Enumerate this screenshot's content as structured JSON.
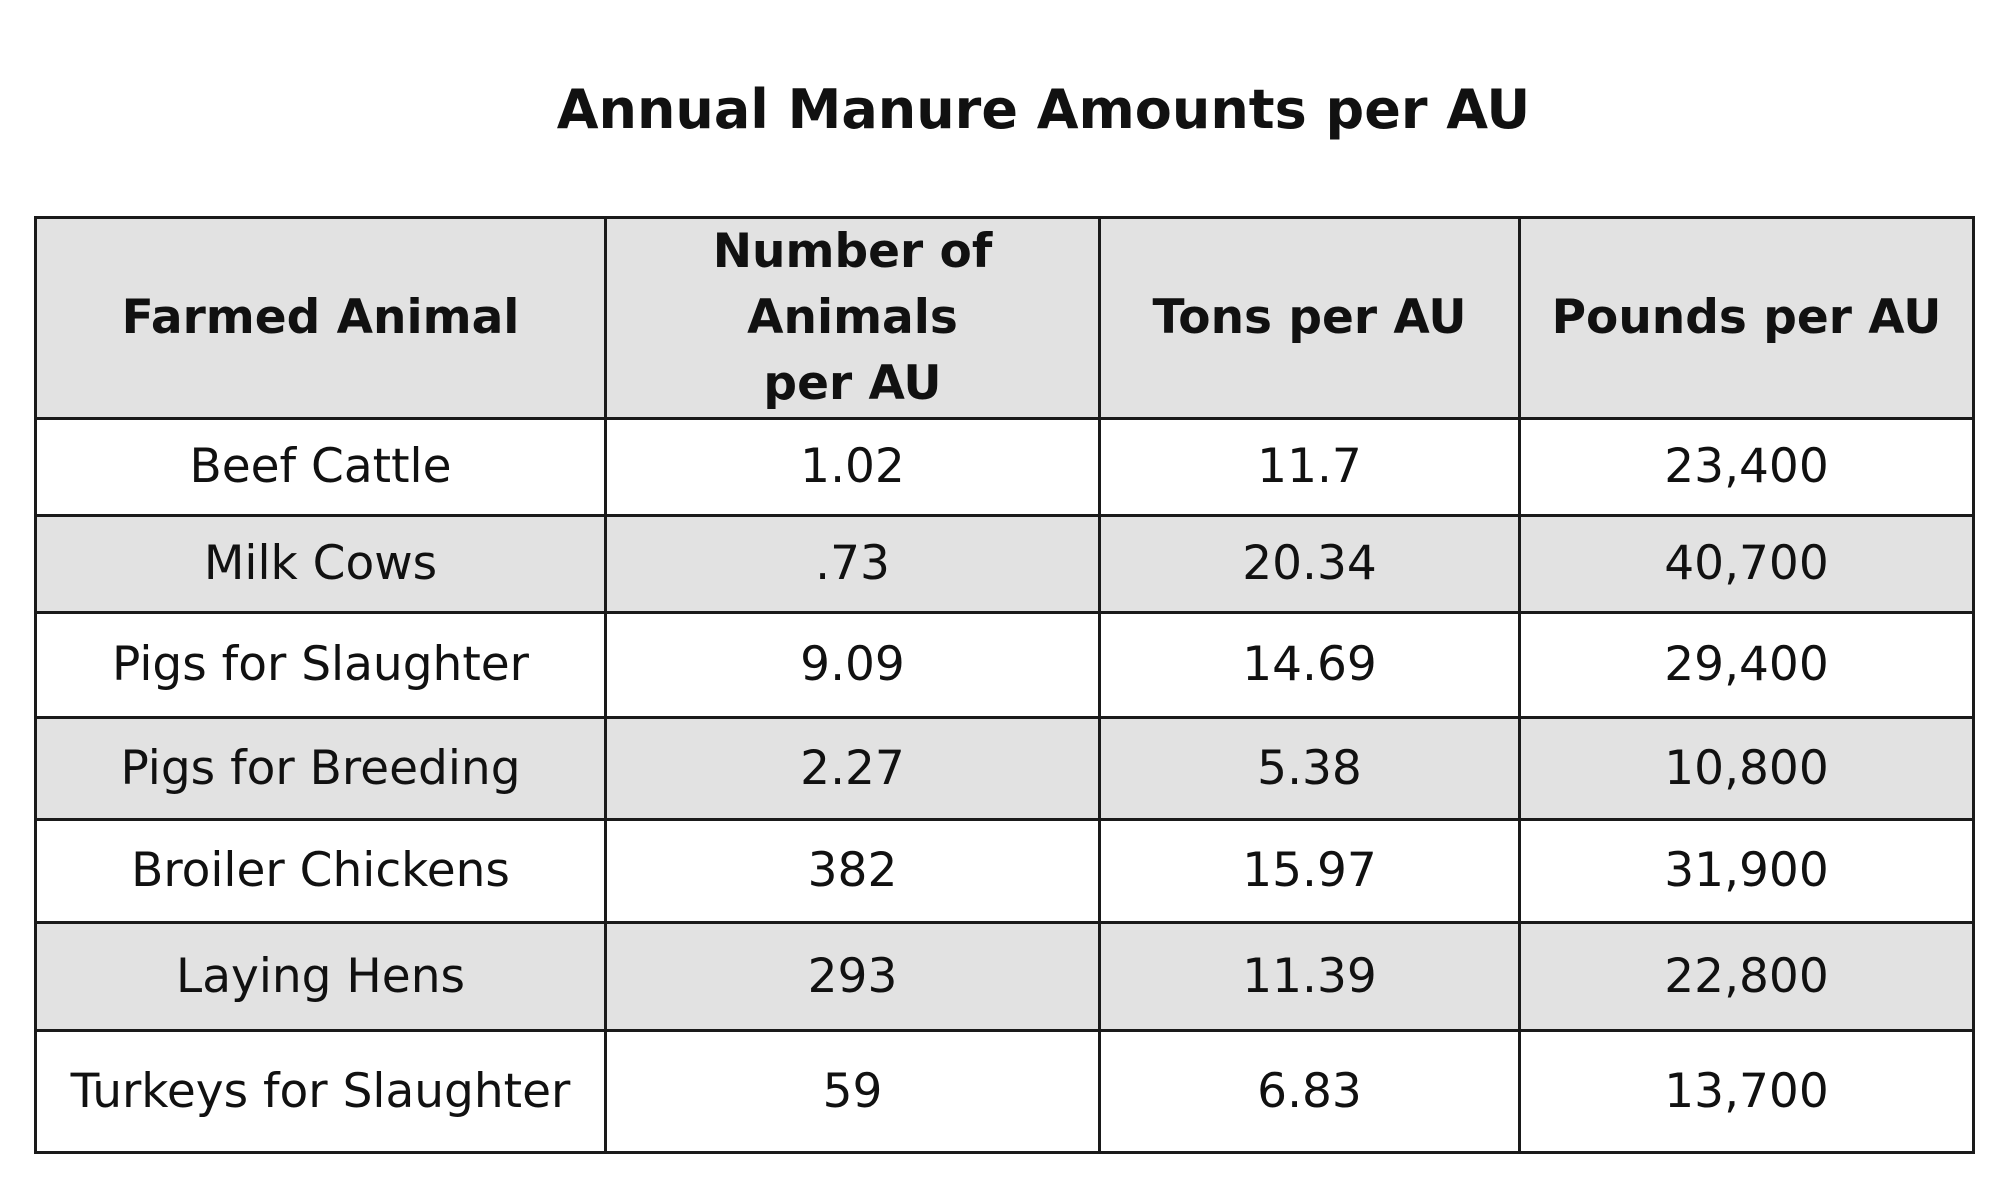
{
  "title": "Annual Manure Amounts per AU",
  "colors": {
    "header_background": "#e2e2e2",
    "shaded_row_background": "#e2e2e2",
    "plain_row_background": "#ffffff",
    "border": "#1a1a1a",
    "text": "#111111"
  },
  "chart_data": {
    "type": "table",
    "title": "Annual Manure Amounts per AU",
    "columns": [
      "Farmed Animal",
      "Number of Animals per AU",
      "Tons per AU",
      "Pounds per AU"
    ],
    "rows": [
      [
        "Beef Cattle",
        "1.02",
        "11.7",
        "23,400"
      ],
      [
        "Milk Cows",
        ".73",
        "20.34",
        "40,700"
      ],
      [
        "Pigs for Slaughter",
        "9.09",
        "14.69",
        "29,400"
      ],
      [
        "Pigs for Breeding",
        "2.27",
        "5.38",
        "10,800"
      ],
      [
        "Broiler Chickens",
        "382",
        "15.97",
        "31,900"
      ],
      [
        "Laying Hens",
        "293",
        "11.39",
        "22,800"
      ],
      [
        "Turkeys for Slaughter",
        "59",
        "6.83",
        "13,700"
      ]
    ]
  }
}
